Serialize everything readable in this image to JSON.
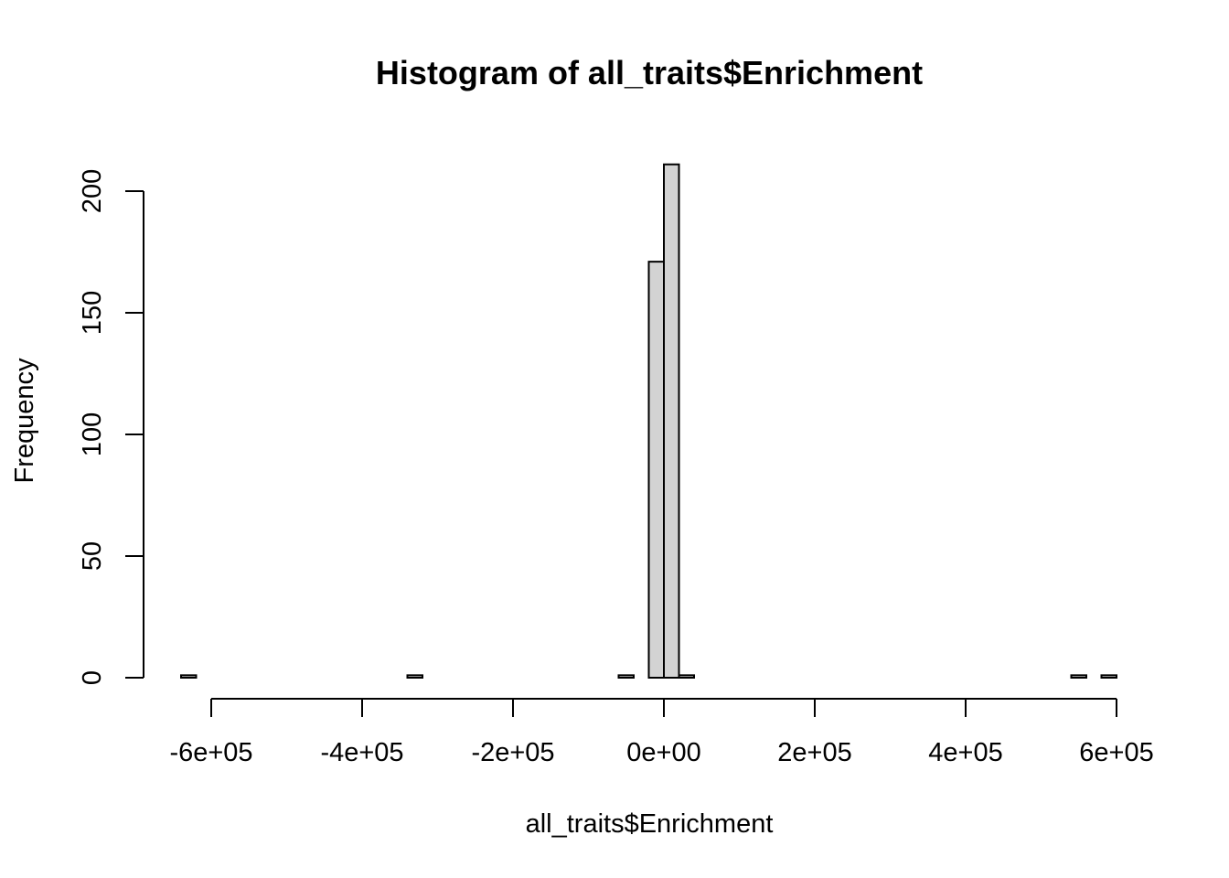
{
  "chart_data": {
    "type": "bar",
    "title": "Histogram of all_traits$Enrichment",
    "xlabel": "all_traits$Enrichment",
    "ylabel": "Frequency",
    "xlim": [
      -650000,
      600000
    ],
    "ylim": [
      0,
      211
    ],
    "x_ticks": [
      -600000,
      -400000,
      -200000,
      0,
      200000,
      400000,
      600000
    ],
    "x_tick_labels": [
      "-6e+05",
      "-4e+05",
      "-2e+05",
      "0e+00",
      "2e+05",
      "4e+05",
      "6e+05"
    ],
    "y_ticks": [
      0,
      50,
      100,
      150,
      200
    ],
    "y_tick_labels": [
      "0",
      "50",
      "100",
      "150",
      "200"
    ],
    "bin_width": 20000,
    "bins": [
      {
        "start": -640000,
        "end": -620000,
        "count": 1
      },
      {
        "start": -620000,
        "end": -600000,
        "count": 0
      },
      {
        "start": -600000,
        "end": -580000,
        "count": 0
      },
      {
        "start": -580000,
        "end": -560000,
        "count": 0
      },
      {
        "start": -560000,
        "end": -540000,
        "count": 0
      },
      {
        "start": -540000,
        "end": -520000,
        "count": 0
      },
      {
        "start": -520000,
        "end": -500000,
        "count": 0
      },
      {
        "start": -500000,
        "end": -480000,
        "count": 0
      },
      {
        "start": -480000,
        "end": -460000,
        "count": 0
      },
      {
        "start": -460000,
        "end": -440000,
        "count": 0
      },
      {
        "start": -440000,
        "end": -420000,
        "count": 0
      },
      {
        "start": -420000,
        "end": -400000,
        "count": 0
      },
      {
        "start": -400000,
        "end": -380000,
        "count": 0
      },
      {
        "start": -380000,
        "end": -360000,
        "count": 0
      },
      {
        "start": -360000,
        "end": -340000,
        "count": 0
      },
      {
        "start": -340000,
        "end": -320000,
        "count": 1
      },
      {
        "start": -320000,
        "end": -300000,
        "count": 0
      },
      {
        "start": -300000,
        "end": -280000,
        "count": 0
      },
      {
        "start": -280000,
        "end": -260000,
        "count": 0
      },
      {
        "start": -260000,
        "end": -240000,
        "count": 0
      },
      {
        "start": -240000,
        "end": -220000,
        "count": 0
      },
      {
        "start": -220000,
        "end": -200000,
        "count": 0
      },
      {
        "start": -200000,
        "end": -180000,
        "count": 0
      },
      {
        "start": -180000,
        "end": -160000,
        "count": 0
      },
      {
        "start": -160000,
        "end": -140000,
        "count": 0
      },
      {
        "start": -140000,
        "end": -120000,
        "count": 0
      },
      {
        "start": -120000,
        "end": -100000,
        "count": 0
      },
      {
        "start": -100000,
        "end": -80000,
        "count": 0
      },
      {
        "start": -80000,
        "end": -60000,
        "count": 0
      },
      {
        "start": -60000,
        "end": -40000,
        "count": 1
      },
      {
        "start": -40000,
        "end": -20000,
        "count": 0
      },
      {
        "start": -20000,
        "end": 0,
        "count": 171
      },
      {
        "start": 0,
        "end": 20000,
        "count": 211
      },
      {
        "start": 20000,
        "end": 40000,
        "count": 1
      },
      {
        "start": 40000,
        "end": 60000,
        "count": 0
      },
      {
        "start": 60000,
        "end": 80000,
        "count": 0
      },
      {
        "start": 80000,
        "end": 100000,
        "count": 0
      },
      {
        "start": 100000,
        "end": 120000,
        "count": 0
      },
      {
        "start": 120000,
        "end": 140000,
        "count": 0
      },
      {
        "start": 140000,
        "end": 160000,
        "count": 0
      },
      {
        "start": 160000,
        "end": 180000,
        "count": 0
      },
      {
        "start": 180000,
        "end": 200000,
        "count": 0
      },
      {
        "start": 200000,
        "end": 220000,
        "count": 0
      },
      {
        "start": 220000,
        "end": 240000,
        "count": 0
      },
      {
        "start": 240000,
        "end": 260000,
        "count": 0
      },
      {
        "start": 260000,
        "end": 280000,
        "count": 0
      },
      {
        "start": 280000,
        "end": 300000,
        "count": 0
      },
      {
        "start": 300000,
        "end": 320000,
        "count": 0
      },
      {
        "start": 320000,
        "end": 340000,
        "count": 0
      },
      {
        "start": 340000,
        "end": 360000,
        "count": 0
      },
      {
        "start": 360000,
        "end": 380000,
        "count": 0
      },
      {
        "start": 380000,
        "end": 400000,
        "count": 0
      },
      {
        "start": 400000,
        "end": 420000,
        "count": 0
      },
      {
        "start": 420000,
        "end": 440000,
        "count": 0
      },
      {
        "start": 440000,
        "end": 460000,
        "count": 0
      },
      {
        "start": 460000,
        "end": 480000,
        "count": 0
      },
      {
        "start": 480000,
        "end": 500000,
        "count": 0
      },
      {
        "start": 500000,
        "end": 520000,
        "count": 0
      },
      {
        "start": 520000,
        "end": 540000,
        "count": 0
      },
      {
        "start": 540000,
        "end": 560000,
        "count": 1
      },
      {
        "start": 560000,
        "end": 580000,
        "count": 0
      },
      {
        "start": 580000,
        "end": 600000,
        "count": 1
      }
    ],
    "bar_fill": "#d3d3d3",
    "bar_stroke": "#000000",
    "grid": false,
    "legend": "none"
  }
}
